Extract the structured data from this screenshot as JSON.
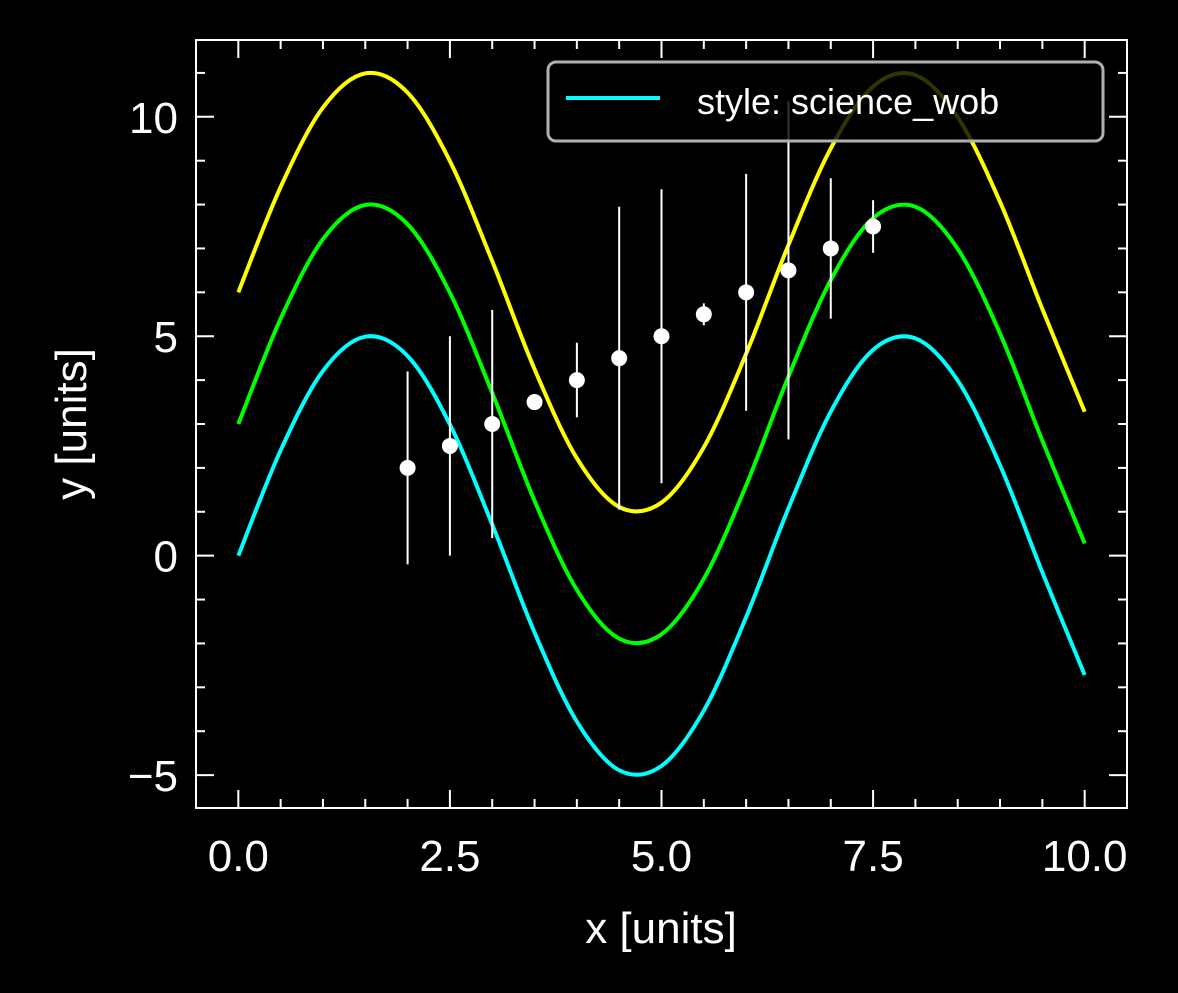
{
  "chart_data": {
    "type": "line",
    "title": "",
    "xlabel": "x [units]",
    "ylabel": "y [units]",
    "xlim": [
      -0.5,
      10.5
    ],
    "ylim": [
      -5.75,
      11.75
    ],
    "xticks": [
      0.0,
      2.5,
      5.0,
      7.5,
      10.0
    ],
    "xtick_labels": [
      "0.0",
      "2.5",
      "5.0",
      "7.5",
      "10.0"
    ],
    "yticks": [
      -5,
      0,
      5,
      10
    ],
    "ytick_labels": [
      "−5",
      "0",
      "5",
      "10"
    ],
    "grid": false,
    "ticks_direction": "in",
    "background": "#000000",
    "foreground": "#ffffff",
    "series": [
      {
        "kind": "line",
        "color": "#00ffff",
        "x": [
          0.0,
          0.5,
          1.0,
          1.5,
          2.0,
          2.5,
          3.0,
          3.5,
          4.0,
          4.5,
          5.0,
          5.5,
          6.0,
          6.5,
          7.0,
          7.5,
          8.0,
          8.5,
          9.0,
          9.5,
          10.0
        ],
        "y": [
          0.0,
          2.4,
          4.21,
          4.99,
          4.55,
          2.99,
          0.71,
          -1.75,
          -3.78,
          -4.89,
          -4.79,
          -3.53,
          -1.4,
          1.08,
          3.28,
          4.69,
          4.95,
          3.99,
          2.06,
          -0.38,
          -2.72
        ]
      },
      {
        "kind": "line",
        "color": "#00ff00",
        "x": [
          0.0,
          0.5,
          1.0,
          1.5,
          2.0,
          2.5,
          3.0,
          3.5,
          4.0,
          4.5,
          5.0,
          5.5,
          6.0,
          6.5,
          7.0,
          7.5,
          8.0,
          8.5,
          9.0,
          9.5,
          10.0
        ],
        "y": [
          3.0,
          5.4,
          7.21,
          7.99,
          7.55,
          5.99,
          3.71,
          1.25,
          -0.78,
          -1.89,
          -1.79,
          -0.53,
          1.6,
          4.08,
          6.28,
          7.69,
          7.95,
          6.99,
          5.06,
          2.62,
          0.28
        ]
      },
      {
        "kind": "line",
        "color": "#ffff00",
        "x": [
          0.0,
          0.5,
          1.0,
          1.5,
          2.0,
          2.5,
          3.0,
          3.5,
          4.0,
          4.5,
          5.0,
          5.5,
          6.0,
          6.5,
          7.0,
          7.5,
          8.0,
          8.5,
          9.0,
          9.5,
          10.0
        ],
        "y": [
          6.0,
          8.4,
          10.21,
          10.99,
          10.55,
          8.99,
          6.71,
          4.25,
          2.22,
          1.11,
          1.21,
          2.47,
          4.6,
          7.08,
          9.28,
          10.69,
          10.95,
          9.99,
          8.06,
          5.62,
          3.28
        ]
      },
      {
        "kind": "errorbar",
        "color": "#ffffff",
        "x": [
          2.0,
          2.5,
          3.0,
          3.5,
          4.0,
          4.5,
          5.0,
          5.5,
          6.0,
          6.5,
          7.0,
          7.5
        ],
        "y": [
          2.0,
          2.5,
          3.0,
          3.5,
          4.0,
          4.5,
          5.0,
          5.5,
          6.0,
          6.5,
          7.0,
          7.5
        ],
        "yerr": [
          2.2,
          2.5,
          2.6,
          0.15,
          0.85,
          3.45,
          3.35,
          0.25,
          2.7,
          3.85,
          1.6,
          0.6
        ]
      }
    ],
    "legend": {
      "placement": "upper-right",
      "entries": [
        {
          "label": "style: science_wob",
          "color": "#00ffff"
        }
      ]
    }
  }
}
